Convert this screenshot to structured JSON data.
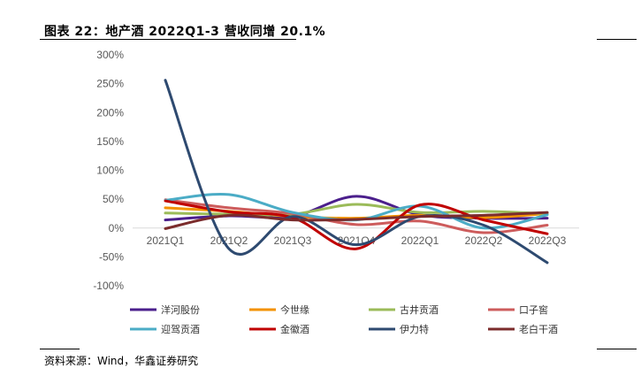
{
  "title": "图表 22：地产酒 2022Q1-3 营收同增 20.1%",
  "source": "资料来源：Wind，华鑫证券研究",
  "chart_data": {
    "type": "line",
    "smooth": true,
    "categories": [
      "2021Q1",
      "2021Q2",
      "2021Q3",
      "2021Q4",
      "2022Q1",
      "2022Q2",
      "2022Q3"
    ],
    "ylim": [
      -100,
      300
    ],
    "yticks": [
      -100,
      -50,
      0,
      50,
      100,
      150,
      200,
      250,
      300
    ],
    "ytick_labels": [
      "-100%",
      "-50%",
      "0%",
      "50%",
      "100%",
      "150%",
      "200%",
      "250%",
      "300%"
    ],
    "grid": false,
    "legend": "bottom",
    "series": [
      {
        "name": "洋河股份",
        "color": "#4B1F8C",
        "values": [
          14,
          21,
          20,
          55,
          23,
          17,
          17
        ]
      },
      {
        "name": "今世缘",
        "color": "#F39200",
        "values": [
          35,
          29,
          20,
          17,
          22,
          18,
          25
        ]
      },
      {
        "name": "古井贡酒",
        "color": "#9BBB59",
        "values": [
          26,
          24,
          24,
          41,
          27,
          29,
          25
        ]
      },
      {
        "name": "口子窖",
        "color": "#CD5C5C",
        "values": [
          49,
          35,
          25,
          6,
          12,
          -8,
          5
        ]
      },
      {
        "name": "迎驾贡酒",
        "color": "#4BACC6",
        "values": [
          48,
          58,
          27,
          14,
          38,
          0,
          23
        ]
      },
      {
        "name": "金徽酒",
        "color": "#C00000",
        "values": [
          47,
          28,
          18,
          -36,
          40,
          14,
          -10
        ]
      },
      {
        "name": "伊力特",
        "color": "#2E4A70",
        "values": [
          256,
          -36,
          20,
          -29,
          20,
          5,
          -60
        ]
      },
      {
        "name": "老白干酒",
        "color": "#7B2C2C",
        "values": [
          -1,
          22,
          14,
          15,
          20,
          22,
          27
        ]
      }
    ]
  }
}
